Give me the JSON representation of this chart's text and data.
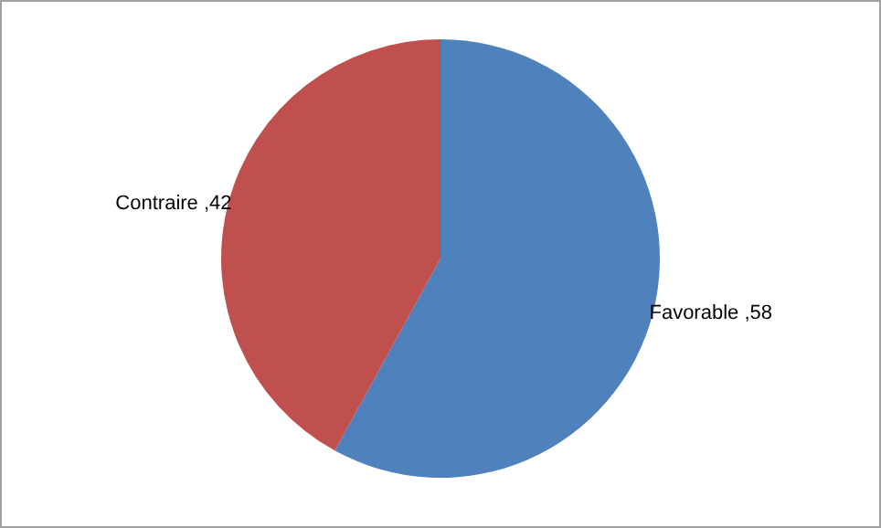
{
  "chart_data": {
    "type": "pie",
    "categories": [
      "Favorable",
      "Contraire"
    ],
    "values": [
      58,
      42
    ],
    "colors": [
      "#4f81bd",
      "#c0504d"
    ],
    "value_labels": [
      ",58",
      ",42"
    ],
    "legend": false
  }
}
